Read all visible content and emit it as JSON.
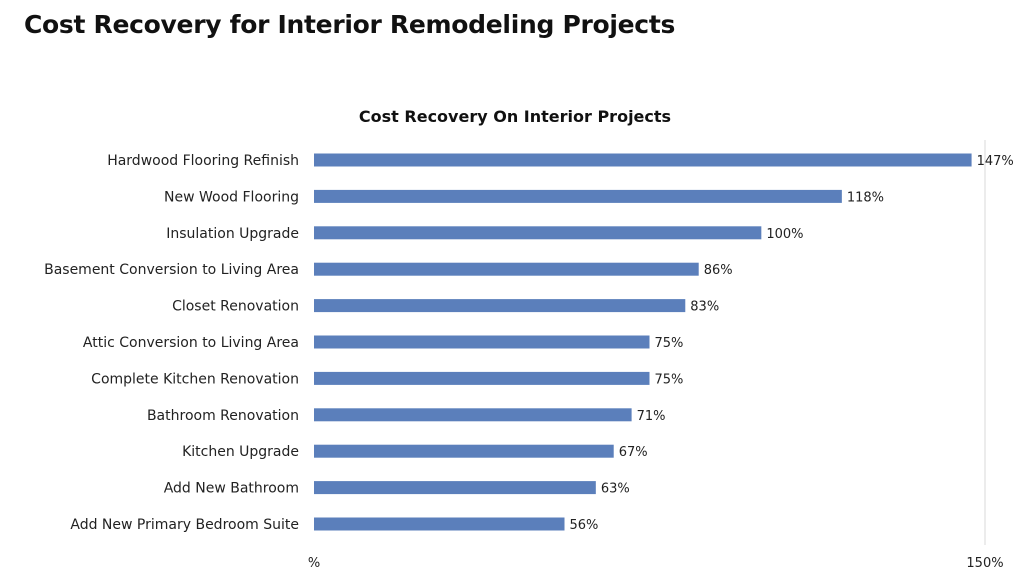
{
  "page": {
    "title": "Cost Recovery for Interior Remodeling Projects"
  },
  "chart_data": {
    "type": "bar",
    "orientation": "horizontal",
    "title": "Cost Recovery On Interior Projects",
    "categories": [
      "Hardwood Flooring Refinish",
      "New Wood Flooring",
      "Insulation Upgrade",
      "Basement Conversion to Living Area",
      "Closet Renovation",
      "Attic Conversion to Living Area",
      "Complete Kitchen Renovation",
      "Bathroom Renovation",
      "Kitchen Upgrade",
      "Add New Bathroom",
      "Add New Primary Bedroom Suite"
    ],
    "values": [
      147,
      118,
      100,
      86,
      83,
      75,
      75,
      71,
      67,
      63,
      56
    ],
    "value_labels": [
      "147%",
      "118%",
      "100%",
      "86%",
      "83%",
      "75%",
      "75%",
      "71%",
      "67%",
      "63%",
      "56%"
    ],
    "xlim": [
      0,
      150
    ],
    "x_tick_labels": [
      "%",
      "150%"
    ],
    "bar_color": "#5b7fbb",
    "grid": false,
    "legend": "none"
  }
}
